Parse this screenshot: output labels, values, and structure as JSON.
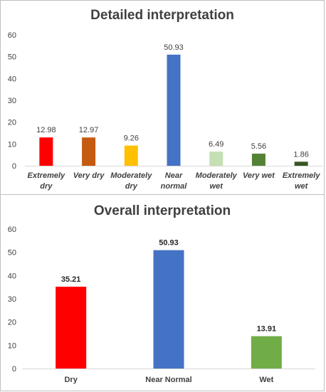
{
  "chart_data": [
    {
      "type": "bar",
      "title": "Detailed interpretation",
      "categories": [
        [
          "Extremely",
          "dry"
        ],
        [
          "Very dry"
        ],
        [
          "Moderately",
          "dry"
        ],
        [
          "Near",
          "normal"
        ],
        [
          "Moderately",
          "wet"
        ],
        [
          "Very wet"
        ],
        [
          "Extremely",
          "wet"
        ]
      ],
      "values": [
        12.98,
        12.97,
        9.26,
        50.93,
        6.49,
        5.56,
        1.86
      ],
      "colors": [
        "#ff0000",
        "#c55a11",
        "#ffc000",
        "#4472c4",
        "#c5e0b4",
        "#548235",
        "#375623"
      ],
      "ylim": [
        0,
        60
      ],
      "yticks": [
        0,
        10,
        20,
        30,
        40,
        50,
        60
      ],
      "xlabel": "",
      "ylabel": "",
      "grid": false,
      "legend": "none"
    },
    {
      "type": "bar",
      "title": "Overall interpretation",
      "categories": [
        [
          "Dry"
        ],
        [
          "Near Normal"
        ],
        [
          "Wet"
        ]
      ],
      "values": [
        35.21,
        50.93,
        13.91
      ],
      "colors": [
        "#ff0000",
        "#4472c4",
        "#70ad47"
      ],
      "ylim": [
        0,
        60
      ],
      "yticks": [
        0,
        10,
        20,
        30,
        40,
        50,
        60
      ],
      "xlabel": "",
      "ylabel": "",
      "grid": false,
      "legend": "none"
    }
  ]
}
